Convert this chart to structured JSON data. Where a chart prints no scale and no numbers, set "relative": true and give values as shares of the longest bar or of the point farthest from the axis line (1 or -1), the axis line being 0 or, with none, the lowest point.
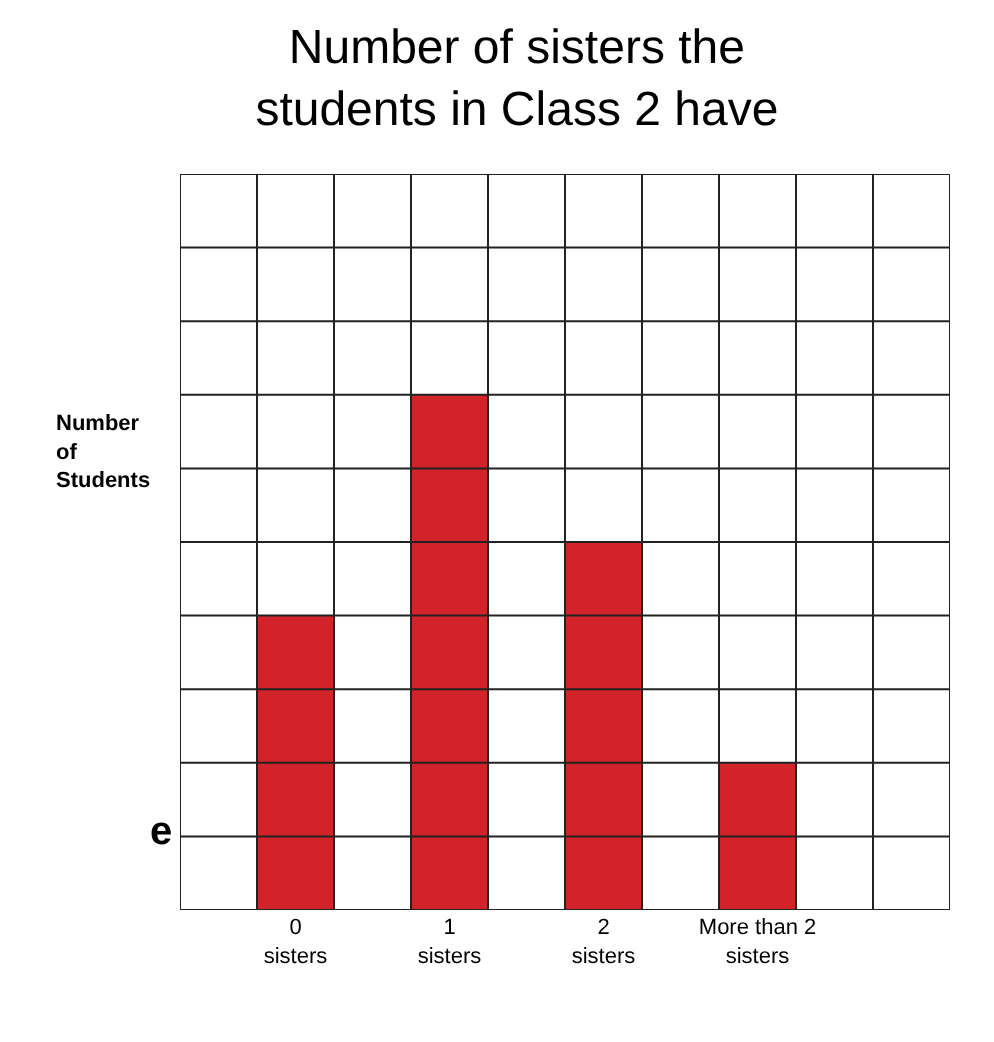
{
  "chart_data": {
    "type": "bar",
    "title": "Number of sisters the students in Class 2 have",
    "ylabel": "Number of Students",
    "categories": [
      "0 sisters",
      "1 sisters",
      "2 sisters",
      "More than 2 sisters"
    ],
    "values": [
      0.571,
      1,
      0.714,
      0.286
    ],
    "color": "#d2232a",
    "relative": true,
    "grid": true,
    "annotations": [
      "e"
    ]
  }
}
